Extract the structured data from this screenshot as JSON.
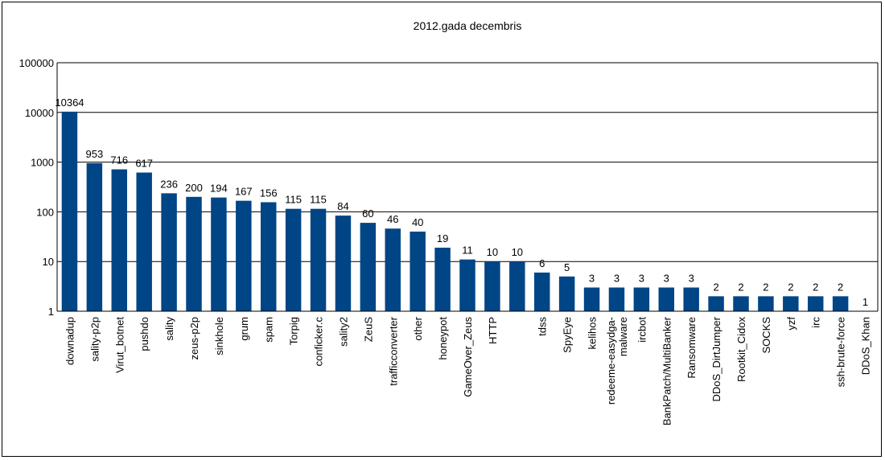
{
  "chart_data": {
    "type": "bar",
    "title": "2012.gada decembris",
    "yscale": "log",
    "ylim": [
      1,
      100000
    ],
    "yticks": [
      "1",
      "10",
      "100",
      "1000",
      "10000",
      "100000"
    ],
    "grid": true,
    "legend": "none",
    "bar_color": "#004586",
    "categories": [
      [
        "downadup"
      ],
      [
        "sality-p2p"
      ],
      [
        "Virut_botnet"
      ],
      [
        "pushdo"
      ],
      [
        "sality"
      ],
      [
        "zeus-p2p"
      ],
      [
        "sinkhole"
      ],
      [
        "grum"
      ],
      [
        "spam"
      ],
      [
        "Torpig"
      ],
      [
        "conficker.c"
      ],
      [
        "sality2"
      ],
      [
        "ZeuS"
      ],
      [
        "trafficconverter"
      ],
      [
        "other"
      ],
      [
        "honeypot"
      ],
      [
        "GameOver_Zeus"
      ],
      [
        "HTTP"
      ],
      [
        ""
      ],
      [
        "tdss"
      ],
      [
        "SpyEye"
      ],
      [
        "kelihos"
      ],
      [
        "redeeme-easydga-",
        "malware"
      ],
      [
        "ircbot"
      ],
      [
        "BankPatch/MultiBanker"
      ],
      [
        "Ransomware"
      ],
      [
        "DDoS_DirtJumper"
      ],
      [
        "Rootkit_Cidox"
      ],
      [
        "SOCKS"
      ],
      [
        "yzf"
      ],
      [
        "irc"
      ],
      [
        "ssh-brute-force"
      ],
      [
        "DDoS_Khan"
      ]
    ],
    "values": [
      10364,
      953,
      716,
      617,
      236,
      200,
      194,
      167,
      156,
      115,
      115,
      84,
      60,
      46,
      40,
      19,
      11,
      10,
      10,
      6,
      5,
      3,
      3,
      3,
      3,
      3,
      2,
      2,
      2,
      2,
      2,
      2,
      1
    ],
    "data_labels": [
      "10364",
      "953",
      "716",
      "617",
      "236",
      "200",
      "194",
      "167",
      "156",
      "115",
      "115",
      "84",
      "60",
      "46",
      "40",
      "19",
      "11",
      "10",
      "10",
      "6",
      "5",
      "3",
      "3",
      "3",
      "3",
      "3",
      "2",
      "2",
      "2",
      "2",
      "2",
      "2",
      "1"
    ]
  }
}
